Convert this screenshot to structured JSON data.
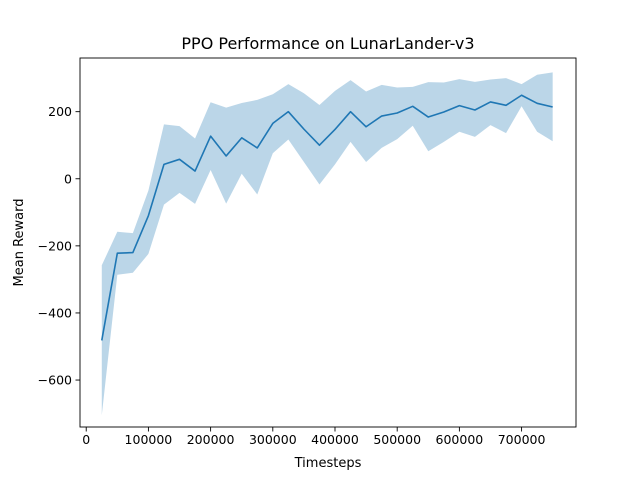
{
  "chart_data": {
    "type": "line",
    "title": "PPO Performance on LunarLander-v3",
    "xlabel": "Timesteps",
    "ylabel": "Mean Reward",
    "xlim": [
      -10000,
      787500
    ],
    "ylim": [
      -740,
      360
    ],
    "grid": false,
    "legend": "none",
    "x_ticks": [
      0,
      100000,
      200000,
      300000,
      400000,
      500000,
      600000,
      700000
    ],
    "x_tick_labels": [
      "0",
      "100000",
      "200000",
      "300000",
      "400000",
      "500000",
      "600000",
      "700000"
    ],
    "y_ticks": [
      -600,
      -400,
      -200,
      0,
      200
    ],
    "y_tick_labels": [
      "−600",
      "−400",
      "−200",
      "0",
      "200"
    ],
    "series": [
      {
        "color": "#1f77b4",
        "band_color": "#1f77b4",
        "band_alpha": 0.3,
        "x": [
          25000,
          50000,
          75000,
          100000,
          125000,
          150000,
          175000,
          200000,
          225000,
          250000,
          275000,
          300000,
          325000,
          350000,
          375000,
          400000,
          425000,
          450000,
          475000,
          500000,
          525000,
          550000,
          575000,
          600000,
          625000,
          650000,
          675000,
          700000,
          725000,
          750000
        ],
        "mean": [
          -482,
          -222,
          -220,
          -110,
          43,
          58,
          23,
          127,
          68,
          122,
          92,
          165,
          200,
          148,
          100,
          147,
          200,
          155,
          187,
          196,
          216,
          184,
          199,
          218,
          205,
          229,
          219,
          249,
          225,
          214
        ],
        "upper": [
          -258,
          -158,
          -162,
          -35,
          162,
          157,
          120,
          228,
          212,
          226,
          235,
          252,
          282,
          255,
          220,
          262,
          294,
          260,
          280,
          272,
          274,
          288,
          287,
          297,
          289,
          296,
          300,
          282,
          310,
          317
        ],
        "lower": [
          -705,
          -286,
          -280,
          -224,
          -77,
          -42,
          -75,
          26,
          -74,
          15,
          -47,
          76,
          117,
          50,
          -17,
          43,
          110,
          50,
          92,
          118,
          158,
          82,
          110,
          140,
          125,
          160,
          136,
          216,
          140,
          112
        ]
      }
    ]
  }
}
